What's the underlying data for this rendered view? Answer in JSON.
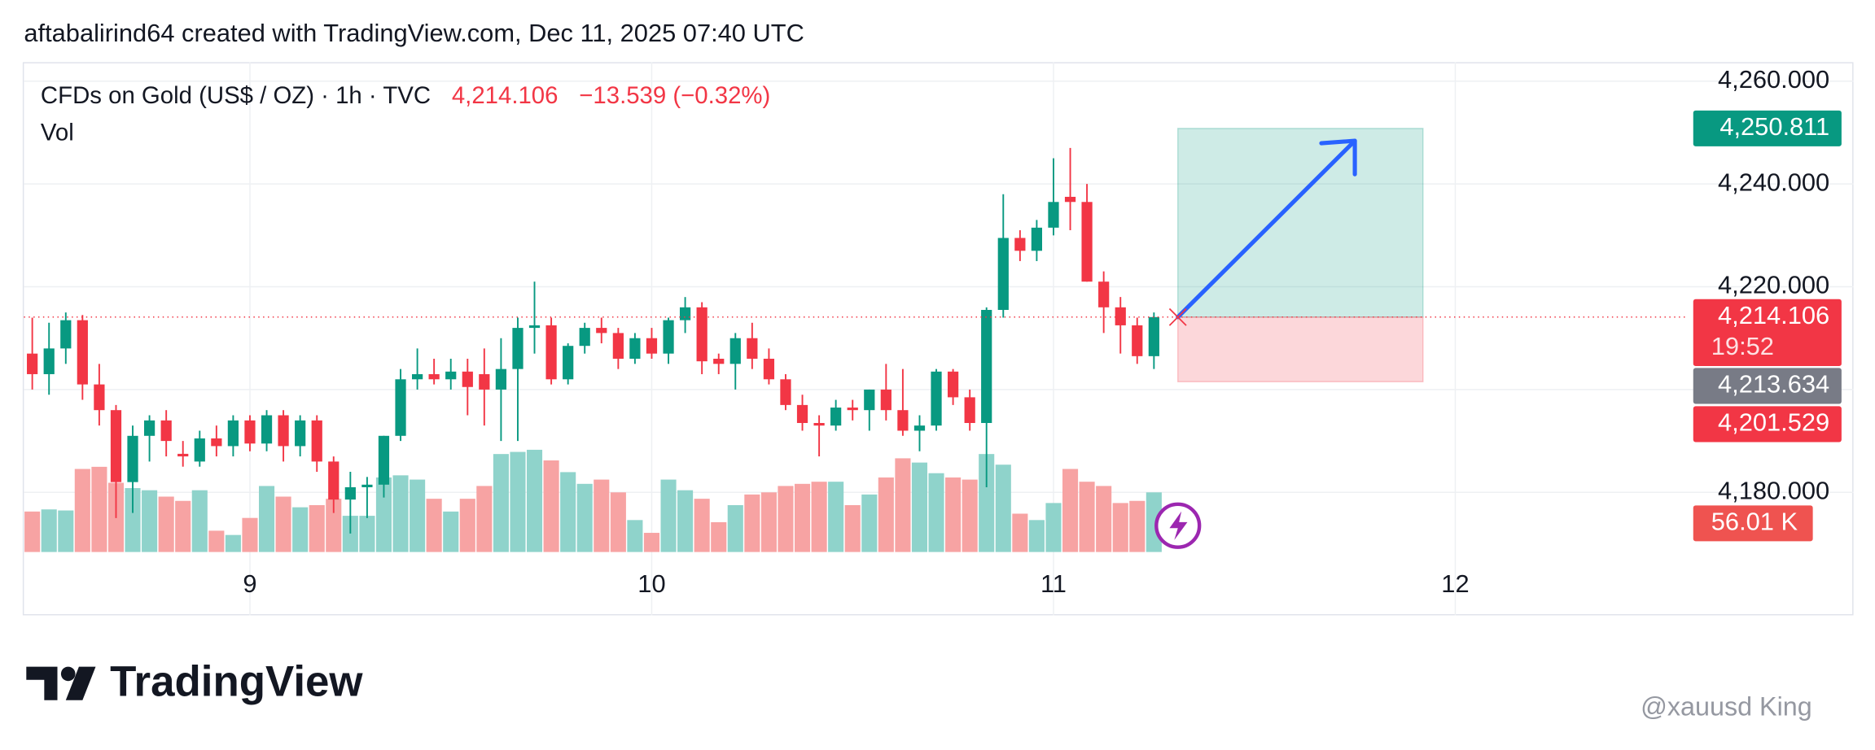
{
  "header": "aftabalirind64 created with TradingView.com, Dec 11, 2025 07:40 UTC",
  "chart_data": {
    "type": "candlestick",
    "title": "CFDs on Gold (US$ / OZ) · 1h · TVC",
    "last_price_label": "4,214.106",
    "change_label": "−13.539 (−0.32%)",
    "volume_title": "Vol",
    "x": [
      8.4583,
      8.5,
      8.5417,
      8.5833,
      8.625,
      8.6667,
      8.7083,
      8.75,
      8.7917,
      8.8333,
      8.875,
      8.9167,
      8.9583,
      9,
      9.0417,
      9.0833,
      9.125,
      9.1667,
      9.2083,
      9.25,
      9.2917,
      9.3333,
      9.375,
      9.4167,
      9.4583,
      9.5,
      9.5417,
      9.5833,
      9.625,
      9.6667,
      9.7083,
      9.75,
      9.7917,
      9.8333,
      9.875,
      9.9167,
      9.9583,
      10,
      10.0417,
      10.0833,
      10.125,
      10.1667,
      10.2083,
      10.25,
      10.2917,
      10.3333,
      10.375,
      10.4167,
      10.4583,
      10.5,
      10.5417,
      10.5833,
      10.625,
      10.6667,
      10.7083,
      10.75,
      10.7917,
      10.8333,
      10.875,
      10.9167,
      10.9583,
      11,
      11.0417,
      11.0833,
      11.125,
      11.1667,
      11.2083,
      11.25
    ],
    "open": [
      4207,
      4203,
      4208,
      4213.5,
      4201,
      4196,
      4182,
      4191,
      4194,
      4187.5,
      4186,
      4190.5,
      4189,
      4194,
      4189.5,
      4195,
      4189,
      4194,
      4186,
      4178.6,
      4181,
      4181.5,
      4191,
      4202,
      4203,
      4202,
      4203.5,
      4203,
      4200,
      4204,
      4212,
      4212.5,
      4202,
      4208.5,
      4212,
      4211,
      4206,
      4210,
      4207,
      4213.5,
      4216,
      4206,
      4205,
      4210,
      4206,
      4202,
      4197,
      4193.5,
      4193,
      4196.5,
      4196,
      4200,
      4196,
      4192,
      4193,
      4203.5,
      4198.5,
      4193.5,
      4215.5,
      4229.5,
      4227,
      4231.5,
      4237.5,
      4236.5,
      4221,
      4216,
      4212.5,
      4206.5
    ],
    "high": [
      4214,
      4213,
      4215,
      4214.5,
      4205,
      4197,
      4193,
      4195,
      4196,
      4190,
      4192,
      4193,
      4195,
      4195,
      4196,
      4196,
      4195,
      4195,
      4187,
      4184,
      4183,
      4191,
      4204,
      4208,
      4206,
      4206,
      4206,
      4208,
      4210,
      4214,
      4221,
      4214,
      4209,
      4213,
      4214,
      4212,
      4211,
      4212,
      4214,
      4218,
      4217,
      4207,
      4211,
      4213,
      4208,
      4203,
      4199,
      4195,
      4198,
      4198,
      4200,
      4205,
      4204,
      4195,
      4204,
      4204,
      4200,
      4216,
      4238,
      4231,
      4233,
      4245,
      4247,
      4240,
      4223,
      4218,
      4214,
      4215
    ],
    "low": [
      4200,
      4199,
      4205,
      4198,
      4193,
      4175,
      4176,
      4186,
      4187,
      4185,
      4185,
      4187,
      4187,
      4188,
      4188,
      4186,
      4187,
      4184,
      4176,
      4172,
      4175,
      4179,
      4190,
      4200,
      4201,
      4200,
      4195,
      4193,
      4190,
      4190,
      4207,
      4201,
      4201,
      4207,
      4209,
      4204,
      4205,
      4206,
      4205,
      4211,
      4203,
      4203,
      4200,
      4204,
      4201,
      4196,
      4192,
      4187,
      4192,
      4194,
      4192,
      4194,
      4191,
      4188,
      4192,
      4197,
      4192,
      4181,
      4214,
      4225,
      4225,
      4230,
      4231,
      4221,
      4211,
      4207,
      4205,
      4204
    ],
    "close": [
      4203,
      4208,
      4213.5,
      4201,
      4196,
      4182,
      4191,
      4194,
      4190,
      4187,
      4190.5,
      4189,
      4194,
      4189.5,
      4195,
      4189,
      4194,
      4186,
      4178.6,
      4181,
      4181.5,
      4191,
      4202,
      4203,
      4202,
      4203.5,
      4200.5,
      4200,
      4204,
      4212,
      4212.5,
      4202,
      4208.5,
      4212,
      4211,
      4206,
      4210,
      4207,
      4213.5,
      4216,
      4205.5,
      4205,
      4210,
      4206,
      4202,
      4197,
      4193.5,
      4193,
      4196.5,
      4196,
      4200,
      4196,
      4192,
      4193,
      4203.5,
      4198.5,
      4193.5,
      4215.5,
      4229.5,
      4227,
      4231.5,
      4236.5,
      4236.5,
      4221,
      4216,
      4212.5,
      4206.5,
      4214.106
    ],
    "volume": [
      38000,
      40000,
      39000,
      78000,
      80000,
      65000,
      60000,
      58000,
      52000,
      48000,
      58000,
      20000,
      16000,
      32000,
      62000,
      52000,
      42000,
      44000,
      50000,
      34000,
      34000,
      70000,
      72000,
      68000,
      50000,
      38000,
      50000,
      62000,
      92000,
      94000,
      96000,
      86000,
      75000,
      64000,
      68000,
      56000,
      30000,
      18000,
      68000,
      58000,
      50000,
      28000,
      44000,
      54000,
      56000,
      62000,
      64000,
      66000,
      66000,
      44000,
      54000,
      70000,
      88000,
      84000,
      74000,
      70000,
      68000,
      92000,
      82000,
      36000,
      30000,
      46000,
      78000,
      66000,
      62000,
      46000,
      48000,
      56010
    ],
    "colors": {
      "up": "#089981",
      "down": "#f23645",
      "up_volume": "#8fd3cb",
      "down_volume": "#f7a3a3"
    },
    "xlim": [
      8.4375,
      12.5744
    ],
    "xticks": [
      9,
      10,
      11,
      12
    ],
    "ylim": [
      4168.4,
      4263.7
    ],
    "yticks": [
      {
        "value": 4180,
        "label": "4,180.000"
      },
      {
        "value": 4200,
        "label": "4,200.000"
      },
      {
        "value": 4220,
        "label": "4,220.000"
      },
      {
        "value": 4240,
        "label": "4,240.000"
      },
      {
        "value": 4260,
        "label": "4,260.000"
      }
    ],
    "vol_ylim": [
      0,
      460000
    ],
    "grid": true,
    "price_tags": [
      {
        "value": 4250.811,
        "label": "4,250.811",
        "color": "#089981"
      },
      {
        "value": 4214.106,
        "label": "4,214.106",
        "countdown": "19:52",
        "color": "#f23645"
      },
      {
        "value": 4213.634,
        "label": "4,213.634",
        "color": "#787b86"
      },
      {
        "value": 4201.529,
        "label": "4,201.529",
        "color": "#f23645"
      }
    ],
    "volume_tag": {
      "value": 56010,
      "label": "56.01 K",
      "color": "#ef5350"
    },
    "position": {
      "entry": 4214.106,
      "target": 4250.811,
      "stop": 4201.529,
      "x": [
        11.3095,
        11.9196
      ]
    },
    "arrow": {
      "x": [
        11.3095,
        11.75
      ],
      "y": [
        4214.106,
        4248.4
      ]
    }
  },
  "footer": {
    "brand": "TradingView",
    "watermark": "@xauusd King"
  }
}
